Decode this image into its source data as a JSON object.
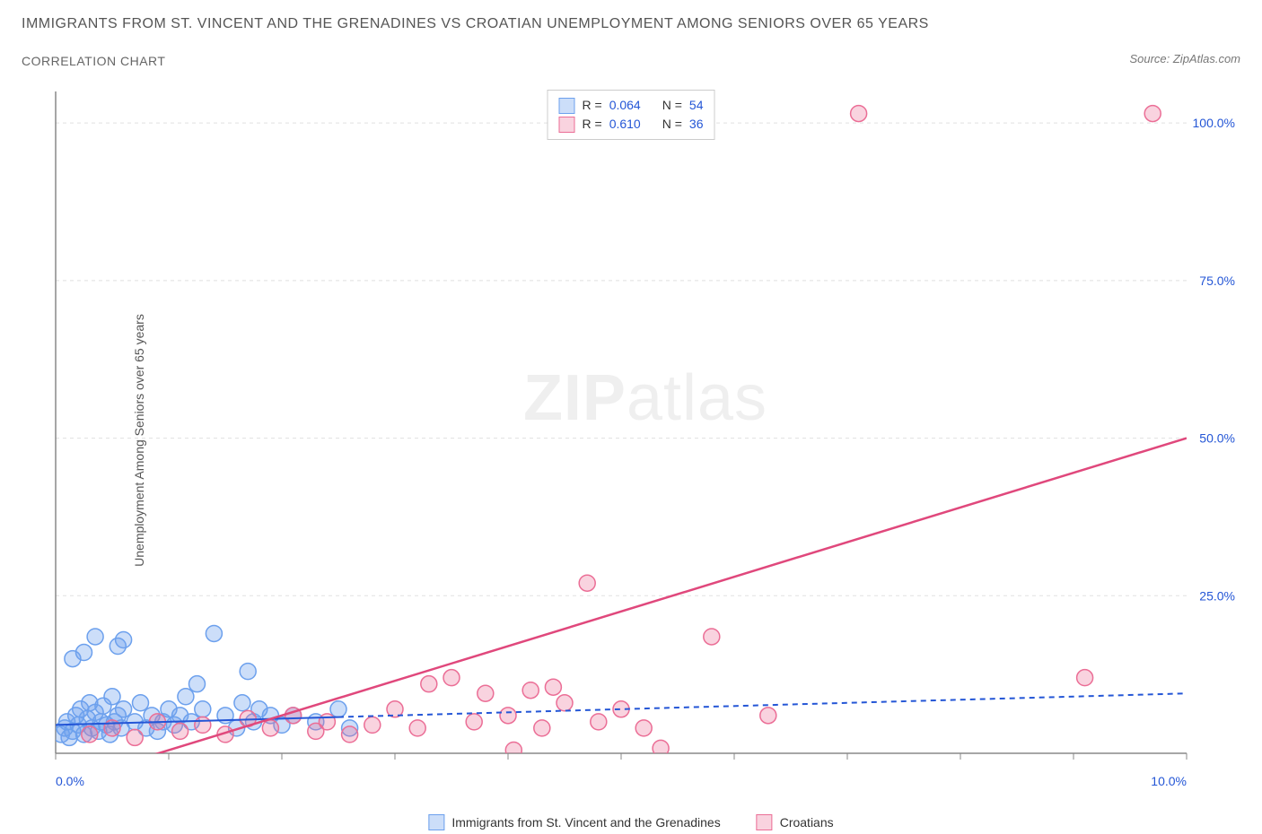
{
  "header": {
    "title": "IMMIGRANTS FROM ST. VINCENT AND THE GRENADINES VS CROATIAN UNEMPLOYMENT AMONG SENIORS OVER 65 YEARS",
    "subtitle": "CORRELATION CHART",
    "source": "Source: ZipAtlas.com"
  },
  "watermark": {
    "zip": "ZIP",
    "atlas": "atlas"
  },
  "chart": {
    "type": "scatter",
    "y_axis_label": "Unemployment Among Seniors over 65 years",
    "background_color": "#ffffff",
    "grid_color": "#e0e0e0",
    "grid_dash": "4,4",
    "axis_color": "#888888",
    "xlim": [
      0,
      10
    ],
    "ylim": [
      0,
      105
    ],
    "ytick_positions": [
      25,
      50,
      75,
      100
    ],
    "ytick_labels": [
      "25.0%",
      "50.0%",
      "75.0%",
      "100.0%"
    ],
    "xtick_positions": [
      0,
      1,
      2,
      3,
      4,
      5,
      6,
      7,
      8,
      9,
      10
    ],
    "xtick_labels_shown": {
      "0": "0.0%",
      "10": "10.0%"
    },
    "tick_label_color": "#2456d6",
    "tick_label_fontsize": 14,
    "marker_radius": 9,
    "marker_stroke_width": 1.5,
    "series": [
      {
        "name": "Immigrants from St. Vincent and the Grenadines",
        "fill_color": "rgba(108,160,237,0.35)",
        "stroke_color": "#6ca0ed",
        "trend": {
          "y_start": 4.5,
          "y_end": 9.5,
          "color": "#2456d6",
          "width": 2,
          "solid_until_x": 2.5,
          "dash_after": "6,5"
        },
        "points": [
          {
            "x": 0.05,
            "y": 3
          },
          {
            "x": 0.08,
            "y": 4
          },
          {
            "x": 0.1,
            "y": 5
          },
          {
            "x": 0.12,
            "y": 2.5
          },
          {
            "x": 0.15,
            "y": 3.5
          },
          {
            "x": 0.18,
            "y": 6
          },
          {
            "x": 0.2,
            "y": 4.5
          },
          {
            "x": 0.22,
            "y": 7
          },
          {
            "x": 0.25,
            "y": 3
          },
          {
            "x": 0.28,
            "y": 5.5
          },
          {
            "x": 0.3,
            "y": 8
          },
          {
            "x": 0.32,
            "y": 4
          },
          {
            "x": 0.35,
            "y": 6.5
          },
          {
            "x": 0.38,
            "y": 3.5
          },
          {
            "x": 0.4,
            "y": 5
          },
          {
            "x": 0.42,
            "y": 7.5
          },
          {
            "x": 0.45,
            "y": 4.5
          },
          {
            "x": 0.48,
            "y": 3
          },
          {
            "x": 0.5,
            "y": 9
          },
          {
            "x": 0.52,
            "y": 5
          },
          {
            "x": 0.55,
            "y": 6
          },
          {
            "x": 0.58,
            "y": 4
          },
          {
            "x": 0.6,
            "y": 7
          },
          {
            "x": 0.15,
            "y": 15
          },
          {
            "x": 0.25,
            "y": 16
          },
          {
            "x": 0.35,
            "y": 18.5
          },
          {
            "x": 0.55,
            "y": 17
          },
          {
            "x": 0.6,
            "y": 18
          },
          {
            "x": 0.7,
            "y": 5
          },
          {
            "x": 0.75,
            "y": 8
          },
          {
            "x": 0.8,
            "y": 4
          },
          {
            "x": 0.85,
            "y": 6
          },
          {
            "x": 0.9,
            "y": 3.5
          },
          {
            "x": 0.95,
            "y": 5
          },
          {
            "x": 1.0,
            "y": 7
          },
          {
            "x": 1.05,
            "y": 4.5
          },
          {
            "x": 1.1,
            "y": 6
          },
          {
            "x": 1.15,
            "y": 9
          },
          {
            "x": 1.2,
            "y": 5
          },
          {
            "x": 1.25,
            "y": 11
          },
          {
            "x": 1.3,
            "y": 7
          },
          {
            "x": 1.4,
            "y": 19
          },
          {
            "x": 1.5,
            "y": 6
          },
          {
            "x": 1.6,
            "y": 4
          },
          {
            "x": 1.65,
            "y": 8
          },
          {
            "x": 1.7,
            "y": 13
          },
          {
            "x": 1.75,
            "y": 5
          },
          {
            "x": 1.8,
            "y": 7
          },
          {
            "x": 1.9,
            "y": 6
          },
          {
            "x": 2.0,
            "y": 4.5
          },
          {
            "x": 2.1,
            "y": 6
          },
          {
            "x": 2.3,
            "y": 5
          },
          {
            "x": 2.5,
            "y": 7
          },
          {
            "x": 2.6,
            "y": 4
          }
        ]
      },
      {
        "name": "Croatians",
        "fill_color": "rgba(235,110,150,0.30)",
        "stroke_color": "#eb6e96",
        "trend": {
          "y_start": -5,
          "y_end": 50,
          "color": "#e0487c",
          "width": 2.5,
          "solid_until_x": 10,
          "dash_after": null
        },
        "points": [
          {
            "x": 0.3,
            "y": 3
          },
          {
            "x": 0.5,
            "y": 4
          },
          {
            "x": 0.7,
            "y": 2.5
          },
          {
            "x": 0.9,
            "y": 5
          },
          {
            "x": 1.1,
            "y": 3.5
          },
          {
            "x": 1.3,
            "y": 4.5
          },
          {
            "x": 1.5,
            "y": 3
          },
          {
            "x": 1.7,
            "y": 5.5
          },
          {
            "x": 1.9,
            "y": 4
          },
          {
            "x": 2.1,
            "y": 6
          },
          {
            "x": 2.3,
            "y": 3.5
          },
          {
            "x": 2.4,
            "y": 5
          },
          {
            "x": 2.6,
            "y": 3
          },
          {
            "x": 2.8,
            "y": 4.5
          },
          {
            "x": 3.0,
            "y": 7
          },
          {
            "x": 3.2,
            "y": 4
          },
          {
            "x": 3.3,
            "y": 11
          },
          {
            "x": 3.5,
            "y": 12
          },
          {
            "x": 3.7,
            "y": 5
          },
          {
            "x": 3.8,
            "y": 9.5
          },
          {
            "x": 4.0,
            "y": 6
          },
          {
            "x": 4.2,
            "y": 10
          },
          {
            "x": 4.3,
            "y": 4
          },
          {
            "x": 4.4,
            "y": 10.5
          },
          {
            "x": 4.5,
            "y": 8
          },
          {
            "x": 4.05,
            "y": 0.5
          },
          {
            "x": 4.7,
            "y": 27
          },
          {
            "x": 4.8,
            "y": 5
          },
          {
            "x": 5.0,
            "y": 7
          },
          {
            "x": 5.2,
            "y": 4
          },
          {
            "x": 5.35,
            "y": 0.8
          },
          {
            "x": 5.8,
            "y": 18.5
          },
          {
            "x": 6.3,
            "y": 6
          },
          {
            "x": 7.1,
            "y": 101.5
          },
          {
            "x": 9.1,
            "y": 12
          },
          {
            "x": 9.7,
            "y": 101.5
          }
        ]
      }
    ],
    "stats_legend": {
      "rows": [
        {
          "swatch_fill": "rgba(108,160,237,0.35)",
          "swatch_stroke": "#6ca0ed",
          "r_label": "R =",
          "r_value": "0.064",
          "n_label": "N =",
          "n_value": "54"
        },
        {
          "swatch_fill": "rgba(235,110,150,0.30)",
          "swatch_stroke": "#eb6e96",
          "r_label": "R =",
          "r_value": "0.610",
          "n_label": "N =",
          "n_value": "36"
        }
      ]
    },
    "bottom_legend": [
      {
        "swatch_fill": "rgba(108,160,237,0.35)",
        "swatch_stroke": "#6ca0ed",
        "label": "Immigrants from St. Vincent and the Grenadines"
      },
      {
        "swatch_fill": "rgba(235,110,150,0.30)",
        "swatch_stroke": "#eb6e96",
        "label": "Croatians"
      }
    ]
  }
}
